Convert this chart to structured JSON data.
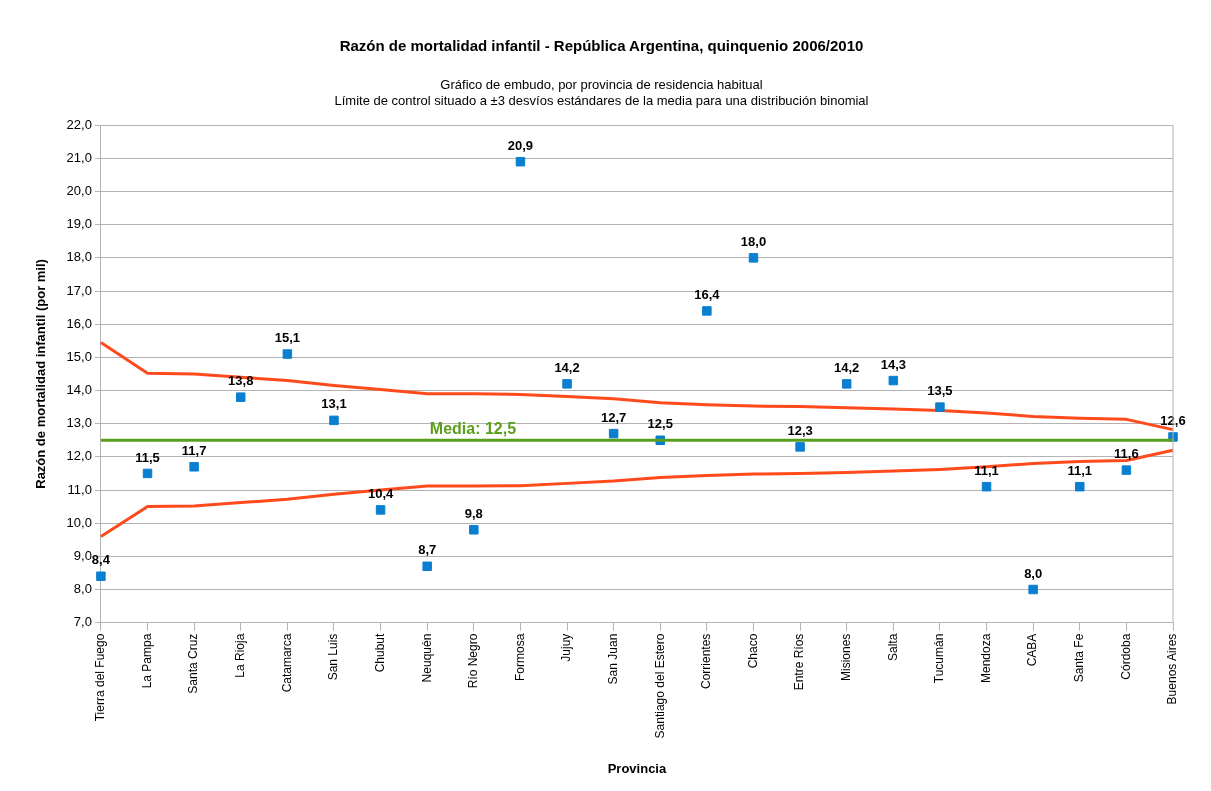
{
  "chart_data": {
    "type": "scatter",
    "title": "Razón de mortalidad infantil - República Argentina, quinquenio 2006/2010",
    "subtitle": "Gráfico de embudo, por provincia de residencia habitual\nLímite de control situado a ±3 desvíos estándares de la media para una distribución binomial",
    "xlabel": "Provincia",
    "ylabel": "Razón de mortalidad infantil (por mil)",
    "categories": [
      "Tierra del Fuego",
      "La Pampa",
      "Santa Cruz",
      "La Rioja",
      "Catamarca",
      "San Luis",
      "Chubut",
      "Neuquén",
      "Río Negro",
      "Formosa",
      "Jujuy",
      "San Juan",
      "Santiago del Estero",
      "Corrientes",
      "Chaco",
      "Entre Ríos",
      "Misiones",
      "Salta",
      "Tucumán",
      "Mendoza",
      "CABA",
      "Santa Fe",
      "Córdoba",
      "Buenos Aires"
    ],
    "series": [
      {
        "type": "line",
        "marker": "none",
        "color": "#ff4a1c",
        "values": [
          15.45,
          14.52,
          14.5,
          14.4,
          14.3,
          14.15,
          14.03,
          13.9,
          13.9,
          13.88,
          13.82,
          13.75,
          13.63,
          13.57,
          13.53,
          13.52,
          13.48,
          13.44,
          13.4,
          13.32,
          13.22,
          13.16,
          13.13,
          12.82
        ]
      },
      {
        "type": "line",
        "marker": "none",
        "color": "#ff4a1c",
        "values": [
          9.6,
          10.5,
          10.52,
          10.62,
          10.72,
          10.87,
          11.0,
          11.12,
          11.12,
          11.13,
          11.2,
          11.27,
          11.38,
          11.44,
          11.48,
          11.5,
          11.53,
          11.57,
          11.62,
          11.7,
          11.8,
          11.86,
          11.89,
          12.2
        ]
      },
      {
        "color": "#0a7fd0",
        "values": [
          8.4,
          11.5,
          11.7,
          13.8,
          15.1,
          13.1,
          10.4,
          8.7,
          9.8,
          20.9,
          14.2,
          12.7,
          12.5,
          16.4,
          18.0,
          12.3,
          14.2,
          14.3,
          13.5,
          11.1,
          8.0,
          11.1,
          11.6,
          12.6
        ],
        "value_labels": [
          "8,4",
          "11,5",
          "11,7",
          "13,8",
          "15,1",
          "13,1",
          "10,4",
          "8,7",
          "9,8",
          "20,9",
          "14,2",
          "12,7",
          "12,5",
          "16,4",
          "18,0",
          "12,3",
          "14,2",
          "14,3",
          "13,5",
          "11,1",
          "8,0",
          "11,1",
          "11,6",
          "12,6"
        ]
      }
    ],
    "ref_lines": [
      {
        "axis": "y",
        "value": 12.5,
        "label": "Media: 12,5",
        "color": "#5a9e1c"
      }
    ],
    "ylim": [
      7,
      22
    ],
    "yticks": [
      {
        "value": 7,
        "label": "7,0"
      },
      {
        "value": 8,
        "label": "8,0"
      },
      {
        "value": 9,
        "label": "9,0"
      },
      {
        "value": 10,
        "label": "10,0"
      },
      {
        "value": 11,
        "label": "11,0"
      },
      {
        "value": 12,
        "label": "12,0"
      },
      {
        "value": 13,
        "label": "13,0"
      },
      {
        "value": 14,
        "label": "14,0"
      },
      {
        "value": 15,
        "label": "15,0"
      },
      {
        "value": 16,
        "label": "16,0"
      },
      {
        "value": 17,
        "label": "17,0"
      },
      {
        "value": 18,
        "label": "18,0"
      },
      {
        "value": 19,
        "label": "19,0"
      },
      {
        "value": 20,
        "label": "20,0"
      },
      {
        "value": 21,
        "label": "21,0"
      },
      {
        "value": 22,
        "label": "22,0"
      }
    ],
    "grid": "y",
    "legend": false,
    "marker": "square"
  }
}
